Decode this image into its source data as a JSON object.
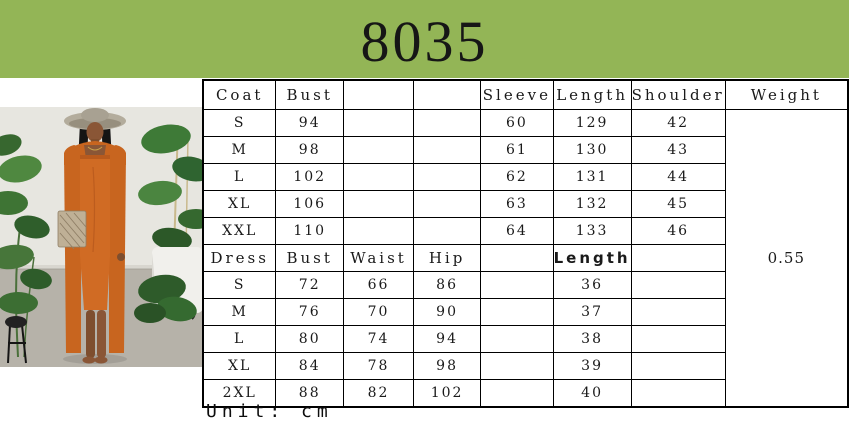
{
  "header": {
    "product_code": "8035"
  },
  "photo": {
    "description": "Model in wide-brim hat wearing an orange tube midi dress with matching long open cardigan, holding a beige patterned clutch, standing between green monstera plants on a concrete floor"
  },
  "size_table": {
    "columns": [
      "Coat",
      "Bust",
      "",
      "",
      "Sleeve",
      "Length",
      "Shoulder",
      "Weight"
    ],
    "rows": [
      [
        "S",
        "94",
        "",
        "",
        "60",
        "129",
        "42"
      ],
      [
        "M",
        "98",
        "",
        "",
        "61",
        "130",
        "43"
      ],
      [
        "L",
        "102",
        "",
        "",
        "62",
        "131",
        "44"
      ],
      [
        "XL",
        "106",
        "",
        "",
        "63",
        "132",
        "45"
      ],
      [
        "XXL",
        "110",
        "",
        "",
        "64",
        "133",
        "46"
      ],
      [
        "Dress",
        "Bust",
        "Waist",
        "Hip",
        "",
        "Length",
        ""
      ],
      [
        "S",
        "72",
        "66",
        "86",
        "",
        "36",
        ""
      ],
      [
        "M",
        "76",
        "70",
        "90",
        "",
        "37",
        ""
      ],
      [
        "L",
        "80",
        "74",
        "94",
        "",
        "38",
        ""
      ],
      [
        "XL",
        "84",
        "78",
        "98",
        "",
        "39",
        ""
      ],
      [
        "2XL",
        "88",
        "82",
        "102",
        "",
        "40",
        ""
      ]
    ],
    "weight_value": "0.55",
    "unit_note": "Unit: cm"
  },
  "colors": {
    "band_green": "#93B556",
    "dress_orange": "#CC6A26",
    "table_border": "#000000"
  }
}
